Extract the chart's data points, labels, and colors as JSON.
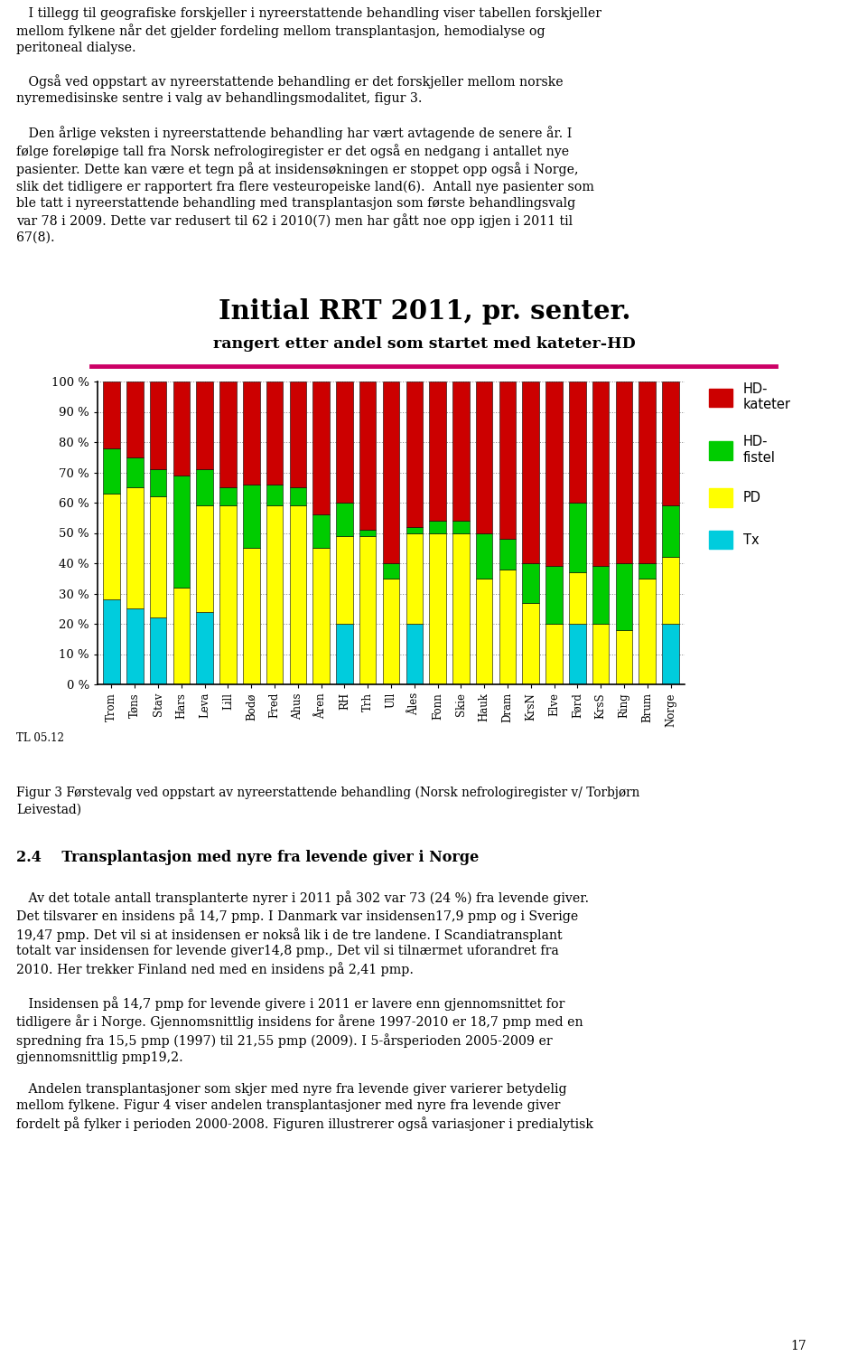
{
  "title": "Initial RRT 2011, pr. senter.",
  "subtitle": "rangert etter andel som startet med kateter-HD",
  "title_line_color": "#cc0066",
  "categories": [
    "Trom",
    "Tøns",
    "Stav",
    "Hars",
    "Leva",
    "Lill",
    "Bodø",
    "Fred",
    "Ahus",
    "Åren",
    "RH",
    "Trh",
    "Ull",
    "Åles",
    "Fonn",
    "Skie",
    "Hauk",
    "Dram",
    "KrsN",
    "Elve",
    "Førd",
    "KrsS",
    "Ring",
    "Brum",
    "Norge"
  ],
  "Tx": [
    28,
    25,
    22,
    0,
    24,
    0,
    0,
    0,
    0,
    0,
    20,
    0,
    0,
    20,
    0,
    0,
    0,
    0,
    0,
    0,
    20,
    0,
    0,
    0,
    20
  ],
  "PD": [
    35,
    40,
    40,
    32,
    35,
    59,
    45,
    59,
    59,
    45,
    29,
    49,
    35,
    30,
    50,
    50,
    35,
    38,
    27,
    20,
    17,
    20,
    18,
    35,
    22
  ],
  "HDfistel": [
    15,
    10,
    9,
    37,
    12,
    6,
    21,
    7,
    6,
    11,
    11,
    2,
    5,
    2,
    4,
    4,
    15,
    10,
    13,
    19,
    23,
    19,
    22,
    5,
    17
  ],
  "HDkateter": [
    22,
    25,
    29,
    31,
    29,
    35,
    34,
    34,
    35,
    44,
    40,
    49,
    60,
    48,
    46,
    46,
    50,
    52,
    60,
    61,
    40,
    61,
    60,
    60,
    41
  ],
  "colors": {
    "Tx": "#00ccdd",
    "PD": "#ffff00",
    "HDfistel": "#00cc00",
    "HDkateter": "#cc0000"
  },
  "tl_label": "TL 05.12",
  "top_text_lines": [
    "   I tillegg til geografiske forskjeller i nyreerstattende behandling viser tabellen forskjeller",
    "mellom fylkene når det gjelder fordeling mellom transplantasjon, hemodialyse og",
    "peritoneal dialyse.",
    "",
    "   Også ved oppstart av nyreerstattende behandling er det forskjeller mellom norske",
    "nyremedisinske sentre i valg av behandlingsmodalitet, figur 3.",
    "",
    "   Den årlige veksten i nyreerstattende behandling har vært avtagende de senere år. I",
    "følge foreløpige tall fra Norsk nefrologiregister er det også en nedgang i antallet nye",
    "pasienter. Dette kan være et tegn på at insidensøkningen er stoppet opp også i Norge,",
    "slik det tidligere er rapportert fra flere vesteuropeiske land(6).  Antall nye pasienter som",
    "ble tatt i nyreerstattende behandling med transplantasjon som første behandlingsvalg",
    "var 78 i 2009. Dette var redusert til 62 i 2010(7) men har gått noe opp igjen i 2011 til",
    "67(8)."
  ],
  "fig3_caption": "Figur 3 Førstevalg ved oppstart av nyreerstattende behandling (Norsk nefrologiregister v/ Torbjørn\nLeivestad)",
  "section_header": "2.4    Transplantasjon med nyre fra levende giver i Norge",
  "bottom_paragraphs": [
    "   Av det totale antall transplanterte nyrer i 2011 på 302 var 73 (24 %) fra levende giver.\nDet tilsvarer en insidens på 14,7 pmp. I Danmark var insidensen17,9 pmp og i Sverige\n19,47 pmp. Det vil si at insidensen er nokså lik i de tre landene. I Scandiatransplant\ntotalt var insidensen for levende giver14,8 pmp., Det vil si tilnærmet uforandret fra\n2010. Her trekker Finland ned med en insidens på 2,41 pmp.",
    "   Insidensen på 14,7 pmp for levende givere i 2011 er lavere enn gjennomsnittet for\ntidligere år i Norge. Gjennomsnittlig insidens for årene 1997-2010 er 18,7 pmp med en\nspredning fra 15,5 pmp (1997) til 21,55 pmp (2009). I 5-årsperioden 2005-2009 er\ngjennomsnittlig pmp19,2.",
    "   Andelen transplantasjoner som skjer med nyre fra levende giver varierer betydelig\nmellom fylkene. Figur 4 viser andelen transplantasjoner med nyre fra levende giver\nfordelt på fylker i perioden 2000-2008. Figuren illustrerer også variasjoner i predialytisk"
  ],
  "page_number": "17"
}
